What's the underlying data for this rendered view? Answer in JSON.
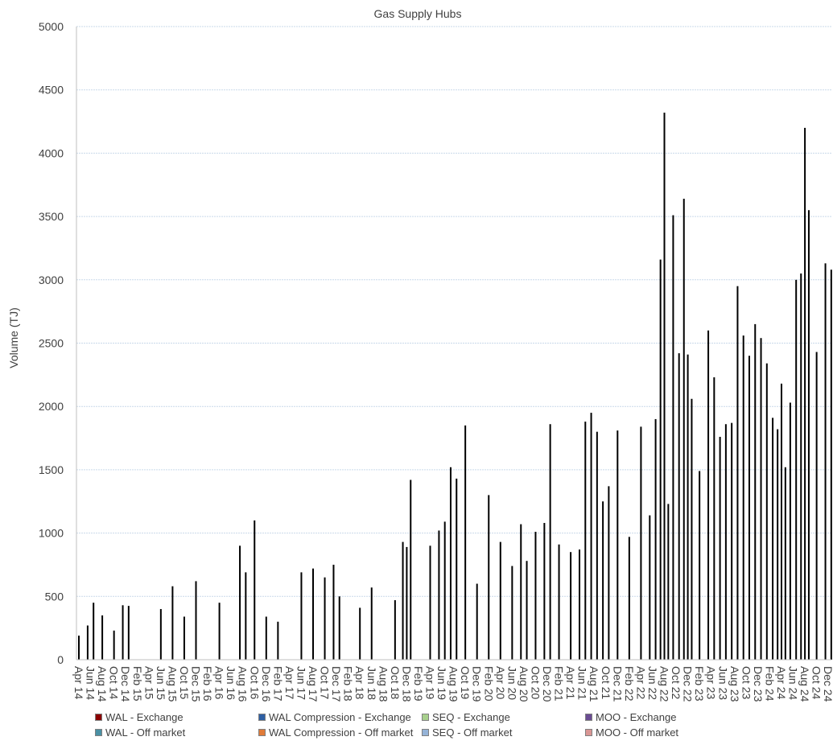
{
  "chart_data": {
    "type": "bar",
    "title": "Gas Supply Hubs",
    "xlabel": "",
    "ylabel": "Volume (TJ)",
    "ylim": [
      0,
      5000
    ],
    "yticks": [
      0,
      500,
      1000,
      1500,
      2000,
      2500,
      3000,
      3500,
      4000,
      4500,
      5000
    ],
    "grid": true,
    "legend_position": "bottom",
    "categories": [
      "Apr 14",
      "Jun 14",
      "Aug 14",
      "Oct 14",
      "Dec 14",
      "Feb 15",
      "Apr 15",
      "Jun 15",
      "Aug 15",
      "Oct 15",
      "Dec 15",
      "Feb 16",
      "Apr 16",
      "Jun 16",
      "Aug 16",
      "Oct 16",
      "Dec 16",
      "Feb 17",
      "Apr 17",
      "Jun 17",
      "Aug 17",
      "Oct 17",
      "Dec 17",
      "Feb 18",
      "Apr 18",
      "Jun 18",
      "Aug 18",
      "Oct 18",
      "Dec 18",
      "Feb 19",
      "Apr 19",
      "Jun 19",
      "Aug 19",
      "Oct 19",
      "Dec 19",
      "Feb 20",
      "Apr 20",
      "Jun 20",
      "Aug 20",
      "Oct 20",
      "Dec 20",
      "Feb 21",
      "Apr 21",
      "Jun 21",
      "Aug 21",
      "Oct 21",
      "Dec 21",
      "Feb 22",
      "Apr 22",
      "Jun 22",
      "Aug 22",
      "Oct 22",
      "Dec 22",
      "Feb 23",
      "Apr 23",
      "Jun 23",
      "Aug 23",
      "Oct 23",
      "Dec 23",
      "Feb 24",
      "Apr 24",
      "Jun 24",
      "Aug 24",
      "Oct 24",
      "Dec 24"
    ],
    "series": [
      {
        "name": "WAL - Exchange",
        "color": "#8b0000"
      },
      {
        "name": "WAL Compression - Exchange",
        "color": "#2e5fa3"
      },
      {
        "name": "SEQ - Exchange",
        "color": "#a8d08d"
      },
      {
        "name": "MOO - Exchange",
        "color": "#6a4c93"
      },
      {
        "name": "WAL - Off market",
        "color": "#4a90a4"
      },
      {
        "name": "WAL Compression - Off market",
        "color": "#e07b39"
      },
      {
        "name": "SEQ - Off market",
        "color": "#95b3d7"
      },
      {
        "name": "MOO - Off market",
        "color": "#d99694"
      }
    ],
    "bar_color": "#000000",
    "peaks": [
      {
        "x": "Apr 14",
        "value": 190
      },
      {
        "x": "Jun 14",
        "value": 270
      },
      {
        "x": "Jun 14",
        "value": 450
      },
      {
        "x": "Aug 14",
        "value": 350
      },
      {
        "x": "Oct 14",
        "value": 230
      },
      {
        "x": "Dec 14",
        "value": 430
      },
      {
        "x": "Dec 14",
        "value": 425
      },
      {
        "x": "Jun 15",
        "value": 400
      },
      {
        "x": "Aug 15",
        "value": 580
      },
      {
        "x": "Oct 15",
        "value": 340
      },
      {
        "x": "Dec 15",
        "value": 620
      },
      {
        "x": "Apr 16",
        "value": 450
      },
      {
        "x": "Aug 16",
        "value": 900
      },
      {
        "x": "Aug 16",
        "value": 690
      },
      {
        "x": "Oct 16",
        "value": 1100
      },
      {
        "x": "Dec 16",
        "value": 340
      },
      {
        "x": "Feb 17",
        "value": 300
      },
      {
        "x": "Jun 17",
        "value": 690
      },
      {
        "x": "Aug 17",
        "value": 720
      },
      {
        "x": "Oct 17",
        "value": 650
      },
      {
        "x": "Dec 17",
        "value": 750
      },
      {
        "x": "Dec 17",
        "value": 500
      },
      {
        "x": "Apr 18",
        "value": 410
      },
      {
        "x": "Jun 18",
        "value": 570
      },
      {
        "x": "Oct 18",
        "value": 470
      },
      {
        "x": "Dec 18",
        "value": 930
      },
      {
        "x": "Dec 18",
        "value": 890
      },
      {
        "x": "Dec 18",
        "value": 1420
      },
      {
        "x": "Apr 19",
        "value": 900
      },
      {
        "x": "Jun 19",
        "value": 1020
      },
      {
        "x": "Jun 19",
        "value": 1090
      },
      {
        "x": "Aug 19",
        "value": 1520
      },
      {
        "x": "Aug 19",
        "value": 1430
      },
      {
        "x": "Oct 19",
        "value": 1850
      },
      {
        "x": "Dec 19",
        "value": 600
      },
      {
        "x": "Feb 20",
        "value": 1300
      },
      {
        "x": "Apr 20",
        "value": 930
      },
      {
        "x": "Jun 20",
        "value": 740
      },
      {
        "x": "Aug 20",
        "value": 1070
      },
      {
        "x": "Aug 20",
        "value": 780
      },
      {
        "x": "Oct 20",
        "value": 1010
      },
      {
        "x": "Dec 20",
        "value": 1080
      },
      {
        "x": "Dec 20",
        "value": 1860
      },
      {
        "x": "Feb 21",
        "value": 910
      },
      {
        "x": "Apr 21",
        "value": 850
      },
      {
        "x": "Jun 21",
        "value": 870
      },
      {
        "x": "Jun 21",
        "value": 1880
      },
      {
        "x": "Aug 21",
        "value": 1950
      },
      {
        "x": "Aug 21",
        "value": 1800
      },
      {
        "x": "Oct 21",
        "value": 1250
      },
      {
        "x": "Oct 21",
        "value": 1370
      },
      {
        "x": "Dec 21",
        "value": 1810
      },
      {
        "x": "Feb 22",
        "value": 970
      },
      {
        "x": "Apr 22",
        "value": 1840
      },
      {
        "x": "Jun 22",
        "value": 1140
      },
      {
        "x": "Jun 22",
        "value": 1900
      },
      {
        "x": "Aug 22",
        "value": 3160
      },
      {
        "x": "Aug 22",
        "value": 4320
      },
      {
        "x": "Aug 22",
        "value": 1230
      },
      {
        "x": "Oct 22",
        "value": 3510
      },
      {
        "x": "Oct 22",
        "value": 2420
      },
      {
        "x": "Dec 22",
        "value": 3640
      },
      {
        "x": "Dec 22",
        "value": 2410
      },
      {
        "x": "Dec 22",
        "value": 2060
      },
      {
        "x": "Feb 23",
        "value": 1490
      },
      {
        "x": "Apr 23",
        "value": 2600
      },
      {
        "x": "Apr 23",
        "value": 2230
      },
      {
        "x": "Jun 23",
        "value": 1760
      },
      {
        "x": "Jun 23",
        "value": 1860
      },
      {
        "x": "Aug 23",
        "value": 1870
      },
      {
        "x": "Aug 23",
        "value": 2950
      },
      {
        "x": "Oct 23",
        "value": 2560
      },
      {
        "x": "Oct 23",
        "value": 2400
      },
      {
        "x": "Dec 23",
        "value": 2650
      },
      {
        "x": "Dec 23",
        "value": 2540
      },
      {
        "x": "Feb 24",
        "value": 2340
      },
      {
        "x": "Feb 24",
        "value": 1910
      },
      {
        "x": "Apr 24",
        "value": 1820
      },
      {
        "x": "Apr 24",
        "value": 2180
      },
      {
        "x": "Apr 24",
        "value": 1520
      },
      {
        "x": "Jun 24",
        "value": 2030
      },
      {
        "x": "Jun 24",
        "value": 3000
      },
      {
        "x": "Aug 24",
        "value": 3050
      },
      {
        "x": "Aug 24",
        "value": 4200
      },
      {
        "x": "Aug 24",
        "value": 3550
      },
      {
        "x": "Oct 24",
        "value": 2430
      },
      {
        "x": "Dec 24",
        "value": 3130
      },
      {
        "x": "Dec 24",
        "value": 3080
      }
    ]
  }
}
